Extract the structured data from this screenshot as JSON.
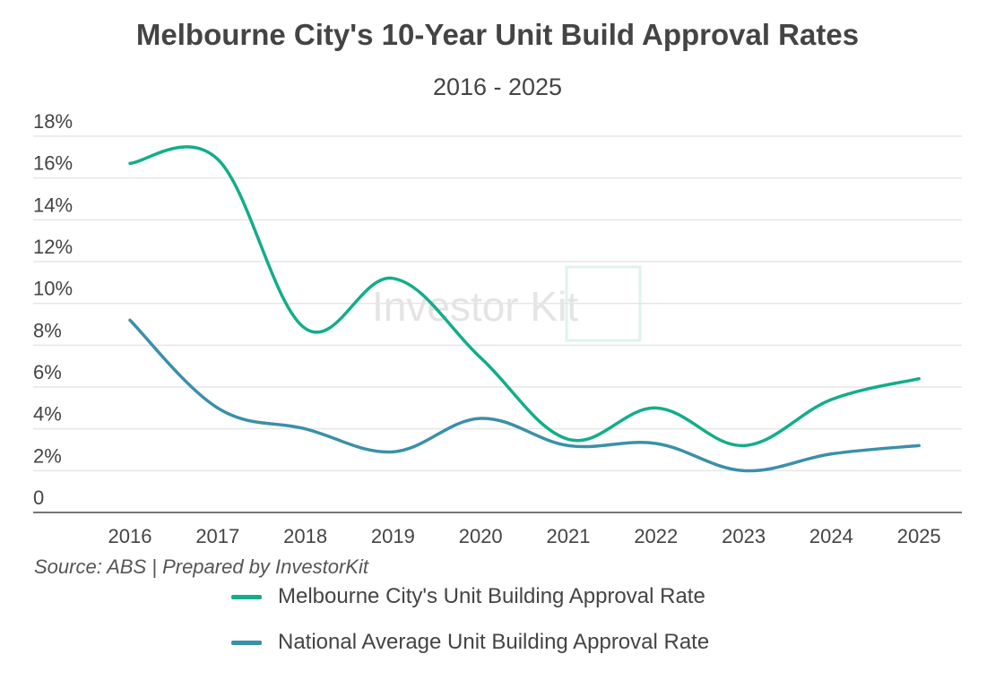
{
  "chart_data": {
    "type": "line",
    "title": "Melbourne City's 10-Year Unit Build Approval Rates",
    "subtitle": "2016 - 2025",
    "categories": [
      "2016",
      "2017",
      "2018",
      "2019",
      "2020",
      "2021",
      "2022",
      "2023",
      "2024",
      "2025"
    ],
    "y_ticks": [
      "0",
      "2%",
      "4%",
      "6%",
      "8%",
      "10%",
      "12%",
      "14%",
      "16%",
      "18%"
    ],
    "ylim": [
      0,
      18
    ],
    "grid": true,
    "legend_placement": "bottom",
    "series": [
      {
        "name": "Melbourne City's Unit Building Approval Rate",
        "color": "#13ad8a",
        "values": [
          16.7,
          16.9,
          8.8,
          11.2,
          7.4,
          3.5,
          5.0,
          3.2,
          5.4,
          6.4
        ]
      },
      {
        "name": "National Average Unit Building Approval Rate",
        "color": "#3a90a8",
        "values": [
          9.2,
          5.0,
          4.0,
          2.9,
          4.5,
          3.2,
          3.3,
          2.0,
          2.8,
          3.2
        ]
      }
    ],
    "source": "Source: ABS | Prepared by InvestorKit"
  },
  "watermark": "Investor Kit"
}
